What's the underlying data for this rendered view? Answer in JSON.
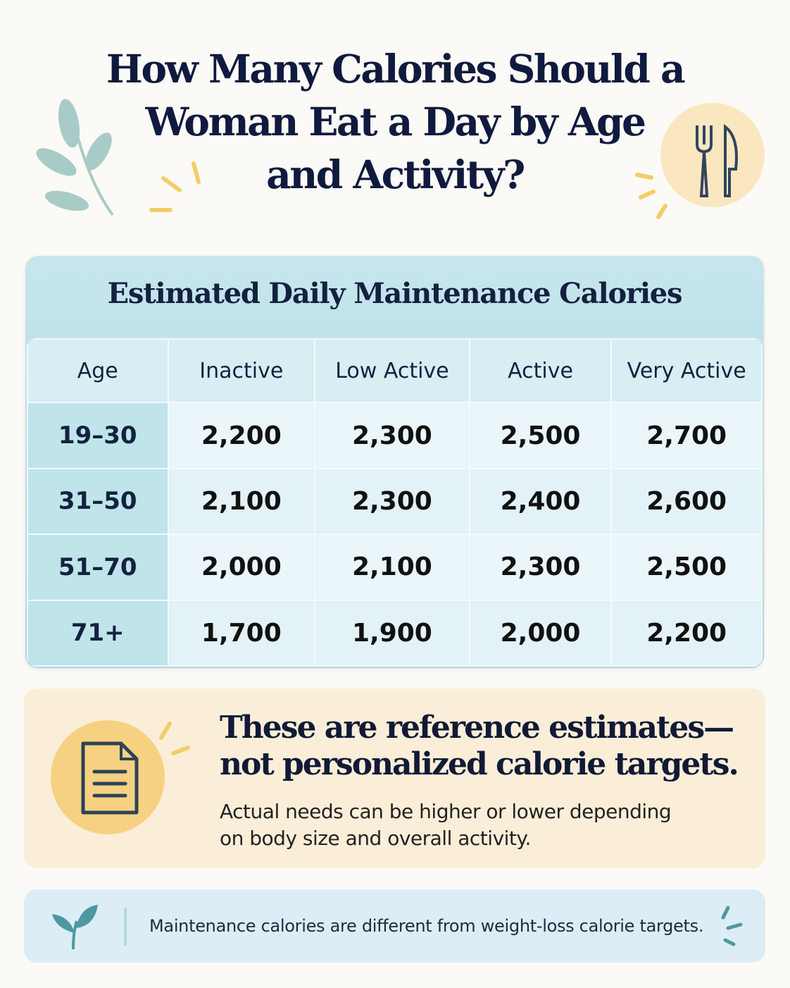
{
  "header": {
    "title_lines": [
      "How Many Calories Should a",
      "Woman Eat a Day by Age",
      "and Activity?"
    ]
  },
  "table": {
    "title": "Estimated Daily Maintenance Calories",
    "header": [
      "Age",
      "Inactive",
      "Low Active",
      "Active",
      "Very Active"
    ],
    "rows": [
      [
        "19–30",
        "2,200",
        "2,300",
        "2,500",
        "2,700"
      ],
      [
        "31–50",
        "2,100",
        "2,300",
        "2,400",
        "2,600"
      ],
      [
        "51–70",
        "2,000",
        "2,100",
        "2,300",
        "2,500"
      ],
      [
        "71+",
        "1,700",
        "1,900",
        "2,000",
        "2,200"
      ]
    ]
  },
  "note": {
    "heading": "These are reference estimates—not personalized calorie targets.",
    "body": "Actual needs can be higher or lower depending on body size and overall activity."
  },
  "footer": {
    "text": "Maintenance calories are different from weight-loss calorie targets."
  }
}
